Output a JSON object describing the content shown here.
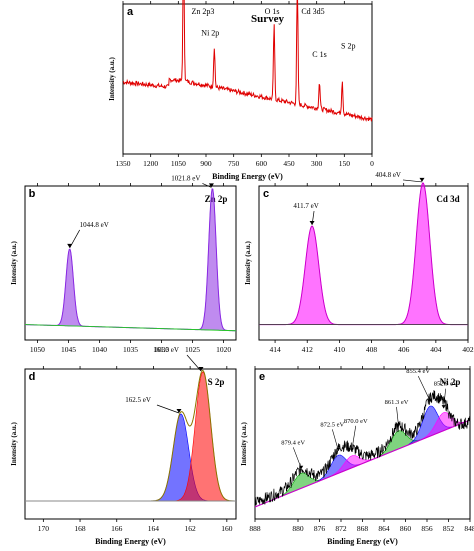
{
  "chart_data": [
    {
      "panel": "a",
      "type": "line",
      "title": "Survey",
      "xlabel": "Binding Energy (eV)",
      "ylabel": "Intensity (a.u.)",
      "xlim": [
        1350,
        0
      ],
      "x_ticks": [
        "1350",
        "1200",
        "1050",
        "900",
        "750",
        "600",
        "450",
        "300",
        "150",
        "0"
      ],
      "color": "#e00000",
      "peaks": [
        {
          "label": "Zn 2p3",
          "x": 1021.8,
          "height": 0.97
        },
        {
          "label": "Cd 3d5",
          "x": 404.8,
          "height": 0.88
        },
        {
          "label": "Ni 2p",
          "x": 855.0,
          "height": 0.3
        },
        {
          "label": "O 1s",
          "x": 531.0,
          "height": 0.55
        },
        {
          "label": "C 1s",
          "x": 284.8,
          "height": 0.2
        },
        {
          "label": "S 2p",
          "x": 161.3,
          "height": 0.25
        }
      ]
    },
    {
      "panel": "b",
      "type": "line",
      "title": "Zn 2p",
      "xlabel": "",
      "ylabel": "Intensity (a.u.)",
      "xlim": [
        1052,
        1018
      ],
      "x_ticks": [
        "1050",
        "1045",
        "1040",
        "1035",
        "1030",
        "1025",
        "1020"
      ],
      "series": [
        {
          "name": "1044.8 eV",
          "center": 1044.8,
          "height": 0.5,
          "color": "#8a2be2"
        },
        {
          "name": "1021.8 eV",
          "center": 1021.8,
          "height": 0.92,
          "color": "#8a2be2"
        }
      ],
      "annotations": [
        "1044.8 eV",
        "1021.8 eV"
      ]
    },
    {
      "panel": "c",
      "type": "line",
      "title": "Cd 3d",
      "xlabel": "",
      "ylabel": "Intensity (a.u.)",
      "xlim": [
        415,
        402
      ],
      "x_ticks": [
        "414",
        "412",
        "410",
        "408",
        "406",
        "404",
        "402"
      ],
      "series": [
        {
          "name": "411.7 eV",
          "center": 411.7,
          "height": 0.64,
          "color": "#ff00ff"
        },
        {
          "name": "404.8 eV",
          "center": 404.8,
          "height": 0.92,
          "color": "#ff00ff"
        }
      ],
      "annotations": [
        "411.7 eV",
        "404.8 eV"
      ]
    },
    {
      "panel": "d",
      "type": "line",
      "title": "S 2p",
      "xlabel": "Binding Energy (eV)",
      "ylabel": "Intensity (a.u.)",
      "xlim": [
        171,
        159.5
      ],
      "x_ticks": [
        "170",
        "168",
        "166",
        "164",
        "162",
        "160"
      ],
      "series": [
        {
          "name": "162.5 eV",
          "center": 162.5,
          "height": 0.58,
          "color": "#0000ff"
        },
        {
          "name": "161.3 eV",
          "center": 161.3,
          "height": 0.86,
          "color": "#ff0000"
        }
      ],
      "annotations": [
        "161.3 eV",
        "162.5 eV"
      ]
    },
    {
      "panel": "e",
      "type": "line",
      "title": "Ni 2p",
      "xlabel": "Binding Energy (eV)",
      "ylabel": "Intensity (a.u.)",
      "xlim": [
        888,
        848
      ],
      "x_ticks": [
        "888",
        "880",
        "876",
        "872",
        "868",
        "864",
        "860",
        "856",
        "852",
        "848"
      ],
      "series": [
        {
          "name": "879.4 eV",
          "center": 879.4,
          "height": 0.1,
          "color": "#00aa00"
        },
        {
          "name": "872.5 eV",
          "center": 872.5,
          "height": 0.12,
          "color": "#0000ff"
        },
        {
          "name": "870.0 eV",
          "center": 870.0,
          "height": 0.08,
          "color": "#ff00ff"
        },
        {
          "name": "861.3 eV",
          "center": 861.3,
          "height": 0.12,
          "color": "#00aa00"
        },
        {
          "name": "855.4 eV",
          "center": 855.4,
          "height": 0.2,
          "color": "#0000ff"
        },
        {
          "name": "852.9 eV",
          "center": 852.9,
          "height": 0.12,
          "color": "#ff00ff"
        }
      ],
      "annotations": [
        "879.4 eV",
        "872.5 eV",
        "870.0 eV",
        "861.3 eV",
        "855.4 eV",
        "852.9 eV"
      ]
    }
  ]
}
